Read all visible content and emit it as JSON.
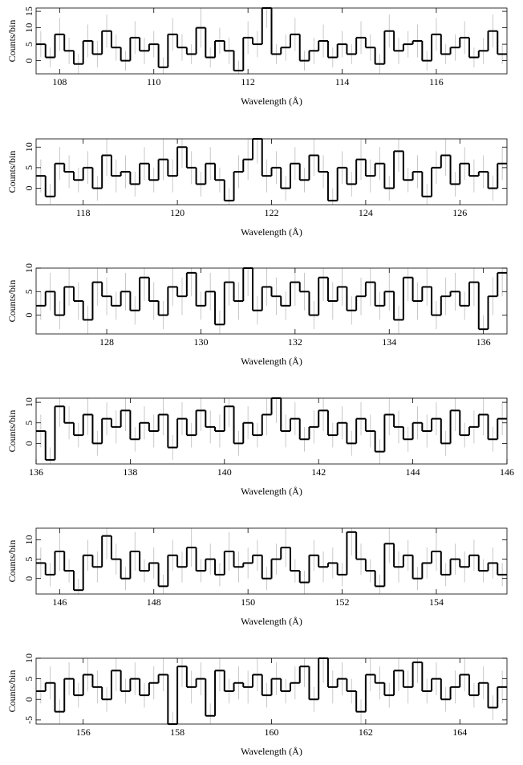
{
  "chart_data": [
    {
      "type": "step",
      "xlabel": "Wavelength (Å)",
      "ylabel": "Counts/bin",
      "xlim": [
        107.5,
        117.5
      ],
      "xticks": [
        108,
        110,
        112,
        114,
        116
      ],
      "ylim": [
        -4,
        16
      ],
      "yticks": [
        0,
        5,
        10,
        15
      ],
      "color": "#000000",
      "error_color": "#bbbbbb",
      "x": [
        107.6,
        107.8,
        108.0,
        108.2,
        108.4,
        108.6,
        108.8,
        109.0,
        109.2,
        109.4,
        109.6,
        109.8,
        110.0,
        110.2,
        110.4,
        110.6,
        110.8,
        111.0,
        111.2,
        111.4,
        111.6,
        111.8,
        112.0,
        112.2,
        112.4,
        112.6,
        112.8,
        113.0,
        113.2,
        113.4,
        113.6,
        113.8,
        114.0,
        114.2,
        114.4,
        114.6,
        114.8,
        115.0,
        115.2,
        115.4,
        115.6,
        115.8,
        116.0,
        116.2,
        116.4,
        116.6,
        116.8,
        117.0,
        117.2,
        117.4
      ],
      "values": [
        5,
        1,
        8,
        3,
        -1,
        6,
        2,
        9,
        4,
        0,
        7,
        3,
        5,
        -2,
        8,
        4,
        2,
        10,
        1,
        6,
        3,
        -3,
        7,
        5,
        16,
        2,
        4,
        8,
        0,
        3,
        6,
        1,
        5,
        2,
        7,
        4,
        -1,
        9,
        3,
        5,
        6,
        0,
        8,
        2,
        4,
        7,
        1,
        3,
        9,
        2
      ],
      "errors": [
        4,
        3,
        5,
        4,
        3,
        5,
        4,
        5,
        4,
        3,
        5,
        4,
        4,
        3,
        5,
        4,
        3,
        6,
        3,
        4,
        4,
        3,
        5,
        4,
        6,
        3,
        4,
        5,
        3,
        4,
        5,
        3,
        4,
        3,
        5,
        4,
        3,
        5,
        4,
        4,
        5,
        3,
        5,
        3,
        4,
        5,
        3,
        4,
        5,
        3
      ]
    },
    {
      "type": "step",
      "xlabel": "Wavelength (Å)",
      "ylabel": "Counts/bin",
      "xlim": [
        117,
        127
      ],
      "xticks": [
        118,
        120,
        122,
        124,
        126
      ],
      "ylim": [
        -4,
        12
      ],
      "yticks": [
        0,
        5,
        10
      ],
      "color": "#000000",
      "error_color": "#bbbbbb",
      "x": [
        117.1,
        117.3,
        117.5,
        117.7,
        117.9,
        118.1,
        118.3,
        118.5,
        118.7,
        118.9,
        119.1,
        119.3,
        119.5,
        119.7,
        119.9,
        120.1,
        120.3,
        120.5,
        120.7,
        120.9,
        121.1,
        121.3,
        121.5,
        121.7,
        121.9,
        122.1,
        122.3,
        122.5,
        122.7,
        122.9,
        123.1,
        123.3,
        123.5,
        123.7,
        123.9,
        124.1,
        124.3,
        124.5,
        124.7,
        124.9,
        125.1,
        125.3,
        125.5,
        125.7,
        125.9,
        126.1,
        126.3,
        126.5,
        126.7,
        126.9
      ],
      "values": [
        3,
        -2,
        6,
        4,
        2,
        5,
        0,
        8,
        3,
        4,
        1,
        6,
        2,
        7,
        3,
        10,
        5,
        1,
        6,
        2,
        -3,
        4,
        7,
        12,
        3,
        5,
        0,
        6,
        2,
        8,
        4,
        -3,
        5,
        1,
        7,
        3,
        6,
        0,
        9,
        2,
        4,
        -2,
        5,
        8,
        1,
        6,
        3,
        4,
        0,
        6
      ],
      "errors": [
        4,
        3,
        4,
        4,
        3,
        4,
        3,
        5,
        4,
        4,
        3,
        4,
        3,
        5,
        4,
        5,
        4,
        3,
        4,
        3,
        3,
        4,
        5,
        6,
        4,
        4,
        3,
        4,
        3,
        5,
        4,
        3,
        4,
        3,
        5,
        4,
        4,
        3,
        5,
        3,
        4,
        3,
        4,
        5,
        3,
        4,
        4,
        4,
        3,
        4
      ]
    },
    {
      "type": "step",
      "xlabel": "Wavelength (Å)",
      "ylabel": "Counts/bin",
      "xlim": [
        126.5,
        136.5
      ],
      "xticks": [
        128,
        130,
        132,
        134,
        136
      ],
      "ylim": [
        -4,
        10
      ],
      "yticks": [
        0,
        5,
        10
      ],
      "color": "#000000",
      "error_color": "#bbbbbb",
      "x": [
        126.6,
        126.8,
        127.0,
        127.2,
        127.4,
        127.6,
        127.8,
        128.0,
        128.2,
        128.4,
        128.6,
        128.8,
        129.0,
        129.2,
        129.4,
        129.6,
        129.8,
        130.0,
        130.2,
        130.4,
        130.6,
        130.8,
        131.0,
        131.2,
        131.4,
        131.6,
        131.8,
        132.0,
        132.2,
        132.4,
        132.6,
        132.8,
        133.0,
        133.2,
        133.4,
        133.6,
        133.8,
        134.0,
        134.2,
        134.4,
        134.6,
        134.8,
        135.0,
        135.2,
        135.4,
        135.6,
        135.8,
        136.0,
        136.2,
        136.4
      ],
      "values": [
        2,
        5,
        0,
        6,
        3,
        -1,
        7,
        4,
        2,
        5,
        1,
        8,
        3,
        0,
        6,
        4,
        9,
        2,
        5,
        -2,
        7,
        3,
        10,
        1,
        6,
        4,
        2,
        7,
        5,
        0,
        8,
        3,
        6,
        1,
        4,
        7,
        2,
        5,
        -1,
        8,
        3,
        6,
        0,
        4,
        5,
        2,
        7,
        -3,
        4,
        9
      ],
      "errors": [
        3,
        4,
        3,
        4,
        4,
        3,
        5,
        4,
        3,
        4,
        3,
        5,
        4,
        3,
        4,
        4,
        5,
        3,
        4,
        3,
        5,
        4,
        6,
        3,
        4,
        4,
        3,
        5,
        4,
        3,
        5,
        4,
        4,
        3,
        4,
        5,
        3,
        4,
        3,
        5,
        4,
        4,
        3,
        4,
        4,
        3,
        5,
        3,
        4,
        5
      ]
    },
    {
      "type": "step",
      "xlabel": "Wavelength (Å)",
      "ylabel": "Counts/bin",
      "xlim": [
        136,
        146
      ],
      "xticks": [
        136,
        138,
        140,
        142,
        144,
        146
      ],
      "ylim": [
        -5,
        11
      ],
      "yticks": [
        0,
        5,
        10
      ],
      "color": "#000000",
      "error_color": "#bbbbbb",
      "x": [
        136.1,
        136.3,
        136.5,
        136.7,
        136.9,
        137.1,
        137.3,
        137.5,
        137.7,
        137.9,
        138.1,
        138.3,
        138.5,
        138.7,
        138.9,
        139.1,
        139.3,
        139.5,
        139.7,
        139.9,
        140.1,
        140.3,
        140.5,
        140.7,
        140.9,
        141.1,
        141.3,
        141.5,
        141.7,
        141.9,
        142.1,
        142.3,
        142.5,
        142.7,
        142.9,
        143.1,
        143.3,
        143.5,
        143.7,
        143.9,
        144.1,
        144.3,
        144.5,
        144.7,
        144.9,
        145.1,
        145.3,
        145.5,
        145.7,
        145.9
      ],
      "values": [
        3,
        -4,
        9,
        5,
        2,
        7,
        0,
        6,
        4,
        8,
        1,
        5,
        3,
        7,
        -1,
        6,
        2,
        8,
        4,
        3,
        9,
        0,
        5,
        2,
        7,
        11,
        3,
        6,
        1,
        4,
        8,
        2,
        5,
        0,
        6,
        3,
        -2,
        7,
        4,
        1,
        5,
        3,
        6,
        0,
        8,
        2,
        4,
        7,
        1,
        6
      ],
      "errors": [
        4,
        3,
        5,
        4,
        3,
        5,
        3,
        4,
        4,
        5,
        3,
        4,
        4,
        5,
        3,
        4,
        3,
        5,
        4,
        4,
        5,
        3,
        4,
        3,
        5,
        6,
        4,
        4,
        3,
        4,
        5,
        3,
        4,
        3,
        4,
        4,
        3,
        5,
        4,
        3,
        4,
        4,
        4,
        3,
        5,
        3,
        4,
        5,
        3,
        4
      ]
    },
    {
      "type": "step",
      "xlabel": "Wavelength (Å)",
      "ylabel": "Counts/bin",
      "xlim": [
        145.5,
        155.5
      ],
      "xticks": [
        146,
        148,
        150,
        152,
        154
      ],
      "ylim": [
        -4,
        13
      ],
      "yticks": [
        0,
        5,
        10
      ],
      "color": "#000000",
      "error_color": "#bbbbbb",
      "x": [
        145.6,
        145.8,
        146.0,
        146.2,
        146.4,
        146.6,
        146.8,
        147.0,
        147.2,
        147.4,
        147.6,
        147.8,
        148.0,
        148.2,
        148.4,
        148.6,
        148.8,
        149.0,
        149.2,
        149.4,
        149.6,
        149.8,
        150.0,
        150.2,
        150.4,
        150.6,
        150.8,
        151.0,
        151.2,
        151.4,
        151.6,
        151.8,
        152.0,
        152.2,
        152.4,
        152.6,
        152.8,
        153.0,
        153.2,
        153.4,
        153.6,
        153.8,
        154.0,
        154.2,
        154.4,
        154.6,
        154.8,
        155.0,
        155.2,
        155.4
      ],
      "values": [
        4,
        1,
        7,
        2,
        -3,
        6,
        3,
        11,
        5,
        0,
        7,
        2,
        4,
        -2,
        6,
        3,
        8,
        2,
        5,
        1,
        7,
        3,
        4,
        6,
        0,
        5,
        8,
        2,
        -1,
        6,
        3,
        4,
        1,
        12,
        5,
        2,
        -2,
        9,
        3,
        6,
        0,
        4,
        7,
        1,
        5,
        3,
        6,
        2,
        4,
        1
      ],
      "errors": [
        4,
        3,
        5,
        3,
        3,
        4,
        4,
        6,
        4,
        3,
        5,
        3,
        4,
        3,
        4,
        4,
        5,
        3,
        4,
        3,
        5,
        4,
        4,
        4,
        3,
        4,
        5,
        3,
        3,
        4,
        4,
        4,
        3,
        6,
        4,
        3,
        3,
        5,
        4,
        4,
        3,
        4,
        5,
        3,
        4,
        4,
        4,
        3,
        4,
        3
      ]
    },
    {
      "type": "step",
      "xlabel": "Wavelength (Å)",
      "ylabel": "Counts/bin",
      "xlim": [
        155,
        165
      ],
      "xticks": [
        156,
        158,
        160,
        162,
        164
      ],
      "ylim": [
        -6,
        10
      ],
      "yticks": [
        -5,
        0,
        5,
        10
      ],
      "color": "#000000",
      "error_color": "#bbbbbb",
      "x": [
        155.1,
        155.3,
        155.5,
        155.7,
        155.9,
        156.1,
        156.3,
        156.5,
        156.7,
        156.9,
        157.1,
        157.3,
        157.5,
        157.7,
        157.9,
        158.1,
        158.3,
        158.5,
        158.7,
        158.9,
        159.1,
        159.3,
        159.5,
        159.7,
        159.9,
        160.1,
        160.3,
        160.5,
        160.7,
        160.9,
        161.1,
        161.3,
        161.5,
        161.7,
        161.9,
        162.1,
        162.3,
        162.5,
        162.7,
        162.9,
        163.1,
        163.3,
        163.5,
        163.7,
        163.9,
        164.1,
        164.3,
        164.5,
        164.7,
        164.9
      ],
      "values": [
        2,
        4,
        -3,
        5,
        1,
        6,
        3,
        0,
        7,
        2,
        5,
        1,
        4,
        6,
        -6,
        8,
        3,
        5,
        -4,
        7,
        2,
        4,
        3,
        6,
        1,
        5,
        2,
        4,
        8,
        0,
        10,
        3,
        5,
        2,
        -3,
        6,
        4,
        1,
        7,
        3,
        9,
        2,
        5,
        0,
        3,
        6,
        1,
        4,
        -2,
        3
      ],
      "errors": [
        3,
        4,
        3,
        4,
        3,
        4,
        4,
        3,
        5,
        3,
        4,
        3,
        4,
        4,
        3,
        5,
        4,
        4,
        3,
        5,
        3,
        4,
        4,
        4,
        3,
        4,
        3,
        4,
        5,
        3,
        6,
        4,
        4,
        3,
        3,
        4,
        4,
        3,
        5,
        4,
        5,
        3,
        4,
        3,
        4,
        4,
        3,
        4,
        3,
        4
      ]
    }
  ]
}
